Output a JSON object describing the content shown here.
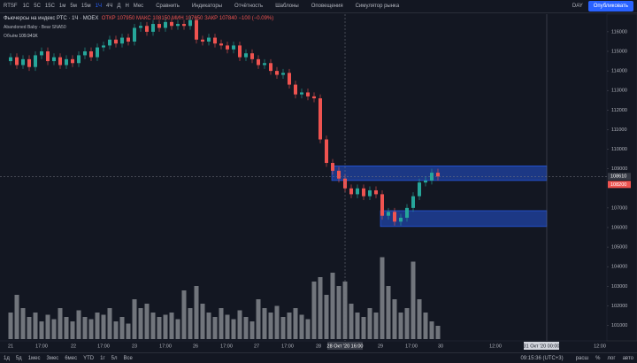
{
  "toolbar": {
    "symbol": "RTSF",
    "intervals": [
      "1С",
      "5С",
      "15С",
      "1м",
      "5м",
      "15м",
      "1Ч",
      "4Ч",
      "Д",
      "Н",
      "Мес"
    ],
    "buttons": [
      "Сравнить",
      "Индикаторы",
      "Отчётность",
      "Шаблоны",
      "Оповещения",
      "Симулятор рынка"
    ],
    "right": [
      "DAY",
      "Опубликовать"
    ]
  },
  "legend": {
    "title": "Фьючерсы на индекс РТС · 1Ч · MOEX",
    "ohlc": "ОТКР 107950 МАКС 108150 МИН 107650 ЗАКР 107840 −100 (−0.09%)",
    "pattern": "Abandoned Baby - Bear  SNA50",
    "volume_label": "Объём",
    "volume_value": "109.941K"
  },
  "bottom": {
    "ranges": [
      "1д",
      "5д",
      "1мес",
      "3мес",
      "6мес",
      "YTD",
      "1г",
      "5л",
      "Все"
    ],
    "clock": "09:15:36 (UTC+3)",
    "options": [
      "расш",
      "%",
      "лог",
      "авто"
    ]
  },
  "chart_data": {
    "type": "candlestick",
    "time_labels": [
      "21",
      "17:00",
      "22",
      "17:00",
      "23",
      "17:00",
      "26",
      "17:00",
      "27",
      "17:00",
      "28",
      "28 Окт '20  16:00",
      "29",
      "17:00",
      "30",
      "12:00",
      "31 Окт '20  00:00",
      "12:00"
    ],
    "open": [
      114500,
      114700,
      114300,
      114600,
      114200,
      114800,
      115000,
      114500,
      114700,
      114300,
      114600,
      114400,
      114800,
      115000,
      114700,
      115200,
      115300,
      115600,
      115400,
      115700,
      115500,
      116200,
      116300,
      116000,
      116400,
      116200,
      116500,
      116300,
      116400,
      116300,
      116600,
      115600,
      115500,
      115700,
      115400,
      115300,
      115100,
      115300,
      114700,
      114900,
      114600,
      114300,
      114400,
      114000,
      113800,
      113900,
      113300,
      112800,
      112900,
      112700,
      112600,
      110500,
      109300,
      108900,
      108500,
      108000,
      107700,
      108000,
      107600,
      107900,
      107700,
      106600,
      106800,
      106300,
      106500,
      107000,
      107600,
      108300,
      108400,
      108800
    ],
    "high": [
      114900,
      114900,
      114800,
      114800,
      115000,
      115200,
      115200,
      114900,
      114900,
      114800,
      114800,
      115000,
      115200,
      115200,
      115400,
      115500,
      115800,
      115800,
      115900,
      115900,
      116400,
      116500,
      116500,
      116600,
      116600,
      116700,
      116700,
      116600,
      116600,
      116800,
      116800,
      115800,
      115900,
      115900,
      115600,
      115500,
      115500,
      115500,
      115100,
      115100,
      114800,
      114600,
      114600,
      114200,
      114100,
      114100,
      113500,
      113100,
      113100,
      112900,
      112800,
      110700,
      109500,
      109100,
      108700,
      108200,
      108200,
      108200,
      108100,
      108100,
      107900,
      107000,
      107000,
      106700,
      107200,
      107800,
      108500,
      108600,
      109000,
      109000
    ],
    "low": [
      114300,
      114100,
      114100,
      114000,
      114000,
      114600,
      114300,
      114300,
      114100,
      114100,
      114200,
      114200,
      114600,
      114500,
      114500,
      115000,
      115100,
      115200,
      115200,
      115300,
      115300,
      116000,
      115800,
      115800,
      116000,
      116000,
      116100,
      116100,
      116100,
      116100,
      115400,
      115300,
      115300,
      115200,
      115100,
      114900,
      114900,
      114500,
      114500,
      114400,
      114100,
      114100,
      113800,
      113600,
      113600,
      113100,
      112600,
      112600,
      112500,
      112400,
      110300,
      109100,
      108700,
      108300,
      107800,
      107500,
      107500,
      107400,
      107400,
      107500,
      106400,
      106400,
      106100,
      106100,
      106300,
      106800,
      107400,
      108100,
      108200,
      108400
    ],
    "close": [
      114700,
      114300,
      114600,
      114200,
      114800,
      115000,
      114500,
      114700,
      114300,
      114600,
      114400,
      114800,
      115000,
      114700,
      115200,
      115300,
      115600,
      115400,
      115700,
      115500,
      116200,
      116300,
      116000,
      116400,
      116200,
      116500,
      116300,
      116400,
      116300,
      116600,
      115600,
      115500,
      115700,
      115400,
      115300,
      115100,
      115300,
      114700,
      114900,
      114600,
      114300,
      114400,
      114000,
      113800,
      113900,
      113300,
      112800,
      112900,
      112700,
      112600,
      110500,
      109300,
      108900,
      108500,
      108000,
      107700,
      108000,
      107600,
      107900,
      107700,
      106600,
      106800,
      106300,
      106500,
      107000,
      107600,
      108300,
      108400,
      108800,
      108610
    ],
    "volume": [
      60000,
      100000,
      70000,
      50000,
      60000,
      40000,
      55000,
      45000,
      70000,
      50000,
      40000,
      65000,
      50000,
      45000,
      60000,
      55000,
      70000,
      40000,
      50000,
      35000,
      90000,
      70000,
      80000,
      60000,
      50000,
      55000,
      60000,
      45000,
      110000,
      70000,
      120000,
      80000,
      60000,
      50000,
      70000,
      55000,
      45000,
      65000,
      50000,
      40000,
      90000,
      70000,
      60000,
      75000,
      50000,
      60000,
      70000,
      55000,
      45000,
      130000,
      140000,
      100000,
      150000,
      120000,
      130000,
      80000,
      60000,
      50000,
      70000,
      60000,
      185000,
      120000,
      90000,
      60000,
      70000,
      175000,
      90000,
      60000,
      40000,
      30000
    ],
    "up_color": "#26a69a",
    "down_color": "#ef5350",
    "volume_color": "#8a8d94",
    "ylim": [
      100300,
      116900
    ],
    "yticks": [
      116000,
      115000,
      114000,
      113000,
      112000,
      111000,
      110000,
      109000,
      107000,
      106000,
      105000,
      104000,
      103000,
      102000,
      101000
    ],
    "volume_ylim": [
      0,
      200000
    ],
    "zones": [
      {
        "high": 109150,
        "low": 108400
      },
      {
        "high": 106860,
        "low": 106050
      }
    ],
    "price_labels": [
      108610,
      108200
    ]
  }
}
